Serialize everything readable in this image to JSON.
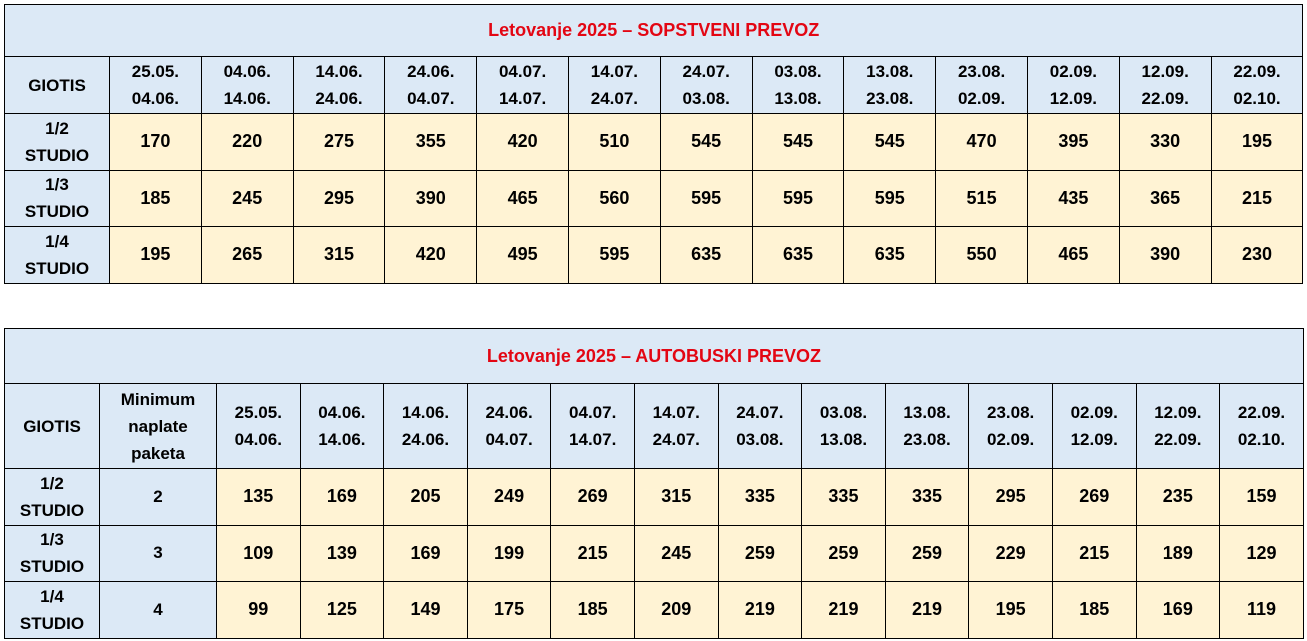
{
  "table1": {
    "title": "Letovanje 2025 – SOPSTVENI PREVOZ",
    "header_label": "GIOTIS",
    "periods": [
      [
        "25.05.",
        "04.06."
      ],
      [
        "04.06.",
        "14.06."
      ],
      [
        "14.06.",
        "24.06."
      ],
      [
        "24.06.",
        "04.07."
      ],
      [
        "04.07.",
        "14.07."
      ],
      [
        "14.07.",
        "24.07."
      ],
      [
        "24.07.",
        "03.08."
      ],
      [
        "03.08.",
        "13.08."
      ],
      [
        "13.08.",
        "23.08."
      ],
      [
        "23.08.",
        "02.09."
      ],
      [
        "02.09.",
        "12.09."
      ],
      [
        "12.09.",
        "22.09."
      ],
      [
        "22.09.",
        "02.10."
      ]
    ],
    "rows": [
      {
        "label": [
          "1/2",
          "STUDIO"
        ],
        "prices": [
          "170",
          "220",
          "275",
          "355",
          "420",
          "510",
          "545",
          "545",
          "545",
          "470",
          "395",
          "330",
          "195"
        ]
      },
      {
        "label": [
          "1/3",
          "STUDIO"
        ],
        "prices": [
          "185",
          "245",
          "295",
          "390",
          "465",
          "560",
          "595",
          "595",
          "595",
          "515",
          "435",
          "365",
          "215"
        ]
      },
      {
        "label": [
          "1/4",
          "STUDIO"
        ],
        "prices": [
          "195",
          "265",
          "315",
          "420",
          "495",
          "595",
          "635",
          "635",
          "635",
          "550",
          "465",
          "390",
          "230"
        ]
      }
    ]
  },
  "table2": {
    "title": "Letovanje 2025 – AUTOBUSKI PREVOZ",
    "header_label": "GIOTIS",
    "min_header": [
      "Minimum",
      "naplate",
      "paketa"
    ],
    "periods": [
      [
        "25.05.",
        "04.06."
      ],
      [
        "04.06.",
        "14.06."
      ],
      [
        "14.06.",
        "24.06."
      ],
      [
        "24.06.",
        "04.07."
      ],
      [
        "04.07.",
        "14.07."
      ],
      [
        "14.07.",
        "24.07."
      ],
      [
        "24.07.",
        "03.08."
      ],
      [
        "03.08.",
        "13.08."
      ],
      [
        "13.08.",
        "23.08."
      ],
      [
        "23.08.",
        "02.09."
      ],
      [
        "02.09.",
        "12.09."
      ],
      [
        "12.09.",
        "22.09."
      ],
      [
        "22.09.",
        "02.10."
      ]
    ],
    "rows": [
      {
        "label": [
          "1/2",
          "STUDIO"
        ],
        "min": "2",
        "prices": [
          "135",
          "169",
          "205",
          "249",
          "269",
          "315",
          "335",
          "335",
          "335",
          "295",
          "269",
          "235",
          "159"
        ]
      },
      {
        "label": [
          "1/3",
          "STUDIO"
        ],
        "min": "3",
        "prices": [
          "109",
          "139",
          "169",
          "199",
          "215",
          "245",
          "259",
          "259",
          "259",
          "229",
          "215",
          "189",
          "129"
        ]
      },
      {
        "label": [
          "1/4",
          "STUDIO"
        ],
        "min": "4",
        "prices": [
          "99",
          "125",
          "149",
          "175",
          "185",
          "209",
          "219",
          "219",
          "219",
          "195",
          "185",
          "169",
          "119"
        ]
      }
    ]
  }
}
